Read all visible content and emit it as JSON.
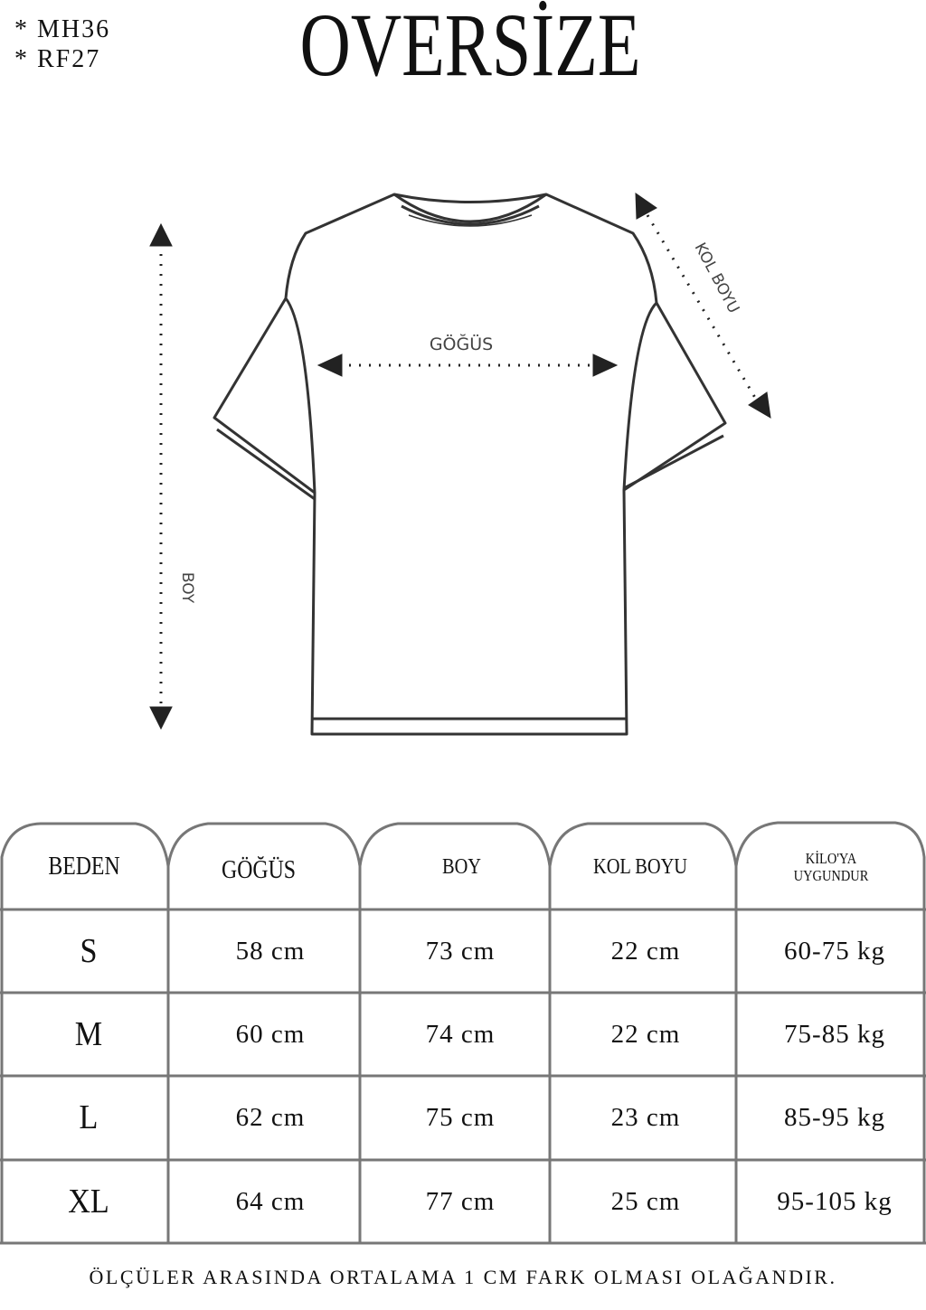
{
  "codes": [
    "* MH36",
    "* RF27"
  ],
  "title": "OVERSİZE",
  "diagram": {
    "chest_label": "GÖĞÜS",
    "length_label": "BOY",
    "sleeve_label": "KOL BOYU"
  },
  "table": {
    "headers": [
      "BEDEN",
      "GÖĞÜS",
      "BOY",
      "KOL BOYU",
      "KİLO'YA",
      "UYGUNDUR"
    ],
    "rows": [
      {
        "size": "S",
        "chest": "58 cm",
        "length": "73 cm",
        "sleeve": "22  cm",
        "weight": "60-75 kg"
      },
      {
        "size": "M",
        "chest": "60 cm",
        "length": "74 cm",
        "sleeve": "22 cm",
        "weight": "75-85 kg"
      },
      {
        "size": "L",
        "chest": "62 cm",
        "length": "75 cm",
        "sleeve": "23 cm",
        "weight": "85-95 kg"
      },
      {
        "size": "XL",
        "chest": "64 cm",
        "length": "77 cm",
        "sleeve": "25 cm",
        "weight": "95-105 kg"
      }
    ]
  },
  "footer": "ÖLÇÜLER ARASINDA ORTALAMA 1 CM FARK OLMASI OLAĞANDIR."
}
